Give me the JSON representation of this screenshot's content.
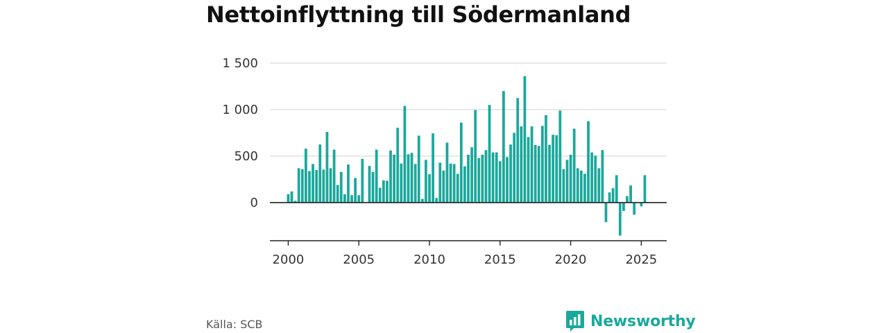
{
  "title": "Nettoinflyttning till Södermanland",
  "source": "Källa: SCB",
  "brand": {
    "name": "Newsworthy",
    "icon": "newsworthy-logo-icon",
    "color": "#1ba89c"
  },
  "chart_data": {
    "type": "bar",
    "title": "Nettoinflyttning till Södermanland",
    "xlabel": "",
    "ylabel": "",
    "color": "#1ba89c",
    "grid": true,
    "ylim": [
      -410,
      1500
    ],
    "xlim": [
      1998.7,
      2026.8
    ],
    "yticks": [
      0,
      500,
      1000,
      1500
    ],
    "ytick_labels": [
      "0",
      "500",
      "1 000",
      "1 500"
    ],
    "xticks": [
      2000,
      2005,
      2010,
      2015,
      2020,
      2025
    ],
    "xtick_labels": [
      "2000",
      "2005",
      "2010",
      "2015",
      "2020",
      "2025"
    ],
    "series": [
      {
        "name": "",
        "x": [
          2000.0,
          2000.25,
          2000.5,
          2000.75,
          2001.0,
          2001.25,
          2001.5,
          2001.75,
          2002.0,
          2002.25,
          2002.5,
          2002.75,
          2003.0,
          2003.25,
          2003.5,
          2003.75,
          2004.0,
          2004.25,
          2004.5,
          2004.75,
          2005.0,
          2005.25,
          2005.5,
          2005.75,
          2006.0,
          2006.25,
          2006.5,
          2006.75,
          2007.0,
          2007.25,
          2007.5,
          2007.75,
          2008.0,
          2008.25,
          2008.5,
          2008.75,
          2009.0,
          2009.25,
          2009.5,
          2009.75,
          2010.0,
          2010.25,
          2010.5,
          2010.75,
          2011.0,
          2011.25,
          2011.5,
          2011.75,
          2012.0,
          2012.25,
          2012.5,
          2012.75,
          2013.0,
          2013.25,
          2013.5,
          2013.75,
          2014.0,
          2014.25,
          2014.5,
          2014.75,
          2015.0,
          2015.25,
          2015.5,
          2015.75,
          2016.0,
          2016.25,
          2016.5,
          2016.75,
          2017.0,
          2017.25,
          2017.5,
          2017.75,
          2018.0,
          2018.25,
          2018.5,
          2018.75,
          2019.0,
          2019.25,
          2019.5,
          2019.75,
          2020.0,
          2020.25,
          2020.5,
          2020.75,
          2021.0,
          2021.25,
          2021.5,
          2021.75,
          2022.0,
          2022.25,
          2022.5,
          2022.75,
          2023.0,
          2023.25,
          2023.5,
          2023.75,
          2024.0,
          2024.25,
          2024.5,
          2024.75,
          2025.0,
          2025.25
        ],
        "values": [
          90,
          120,
          20,
          370,
          360,
          580,
          340,
          415,
          350,
          625,
          355,
          760,
          370,
          570,
          190,
          330,
          90,
          410,
          80,
          265,
          80,
          470,
          0,
          395,
          330,
          570,
          160,
          240,
          235,
          560,
          515,
          805,
          420,
          1040,
          520,
          535,
          415,
          720,
          40,
          460,
          305,
          745,
          50,
          430,
          345,
          645,
          420,
          415,
          310,
          860,
          390,
          515,
          595,
          995,
          480,
          515,
          565,
          1050,
          540,
          540,
          445,
          1200,
          490,
          625,
          750,
          1125,
          820,
          1360,
          705,
          820,
          620,
          610,
          825,
          940,
          620,
          730,
          725,
          990,
          360,
          460,
          515,
          795,
          370,
          345,
          310,
          875,
          540,
          505,
          370,
          565,
          -210,
          110,
          155,
          295,
          -355,
          -90,
          70,
          185,
          -130,
          0,
          -40,
          295
        ]
      }
    ]
  }
}
